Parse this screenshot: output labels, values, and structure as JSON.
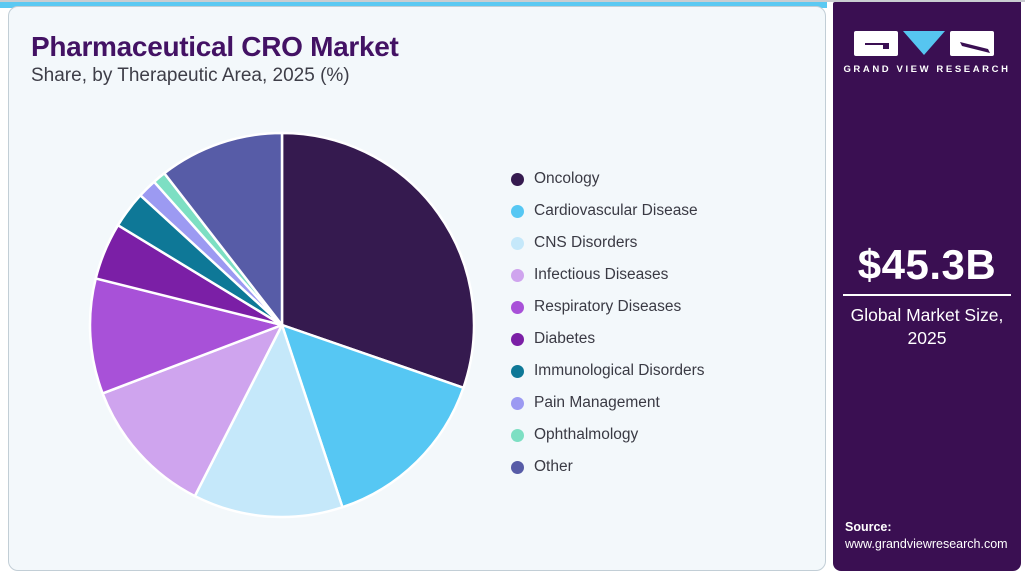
{
  "header": {
    "title": "Pharmaceutical CRO Market",
    "subtitle": "Share, by Therapeutic Area, 2025 (%)"
  },
  "brand": {
    "name": "GRAND VIEW RESEARCH"
  },
  "sidebar": {
    "market_size_value": "$45.3B",
    "market_size_label_line1": "Global Market Size,",
    "market_size_label_line2": "2025",
    "source_label": "Source:",
    "source_url": "www.grandviewresearch.com"
  },
  "colors": {
    "topbar_accent": "#5bc9f2",
    "sidebar_bg": "#3a0f52",
    "title_color": "#431264",
    "card_bg": "#f3f8fb",
    "legend_text": "#3a3a44",
    "logo_triangle": "#56c5f0"
  },
  "chart_data": {
    "type": "pie",
    "title": "Pharmaceutical CRO Market Share, by Therapeutic Area, 2025 (%)",
    "units": "%",
    "start_angle_deg": 0,
    "direction": "clockwise",
    "legend_position": "right",
    "values_shown_on_chart": false,
    "slices": [
      {
        "label": "Oncology",
        "value": 30.3,
        "color": "#351a4f"
      },
      {
        "label": "Cardiovascular Disease",
        "value": 14.6,
        "color": "#56c7f3"
      },
      {
        "label": "CNS Disorders",
        "value": 12.6,
        "color": "#c5e8fa"
      },
      {
        "label": "Infectious Diseases",
        "value": 11.7,
        "color": "#cfa4ee"
      },
      {
        "label": "Respiratory Diseases",
        "value": 9.7,
        "color": "#a851d8"
      },
      {
        "label": "Diabetes",
        "value": 4.8,
        "color": "#7b1fa6"
      },
      {
        "label": "Immunological Disorders",
        "value": 3.1,
        "color": "#0e7897"
      },
      {
        "label": "Pain Management",
        "value": 1.6,
        "color": "#9c9af2"
      },
      {
        "label": "Ophthalmology",
        "value": 1.1,
        "color": "#7ddfc3"
      },
      {
        "label": "Other",
        "value": 10.5,
        "color": "#575ca7"
      }
    ]
  }
}
